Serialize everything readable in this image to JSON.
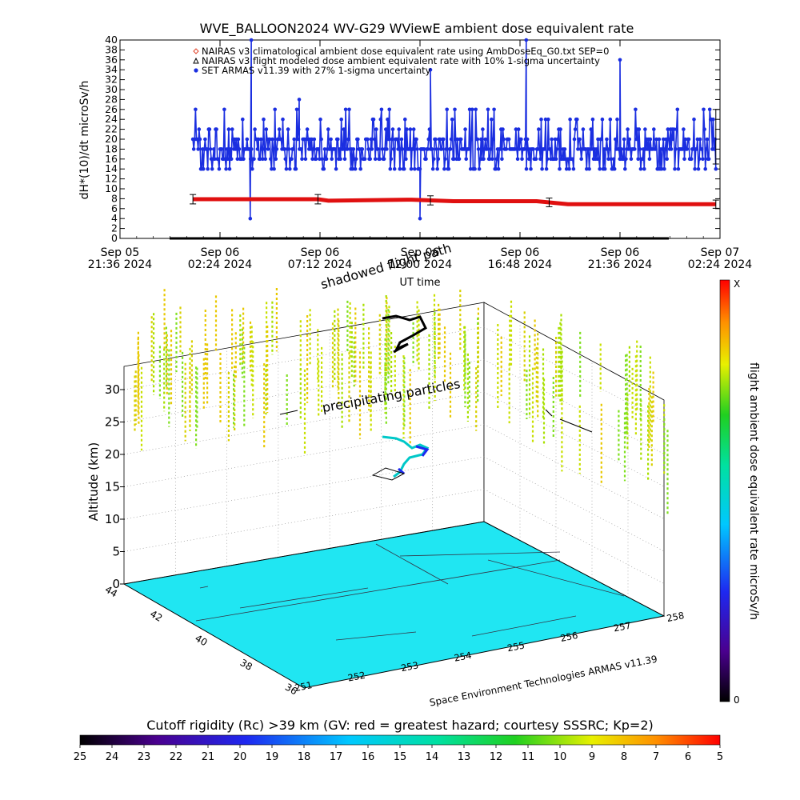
{
  "chart_data": [
    {
      "type": "line",
      "title": "WVE_BALLOON2024 WV-G29 WViewE ambient dose equivalent rate",
      "ylabel": "dH*(10)/dt microSv/h",
      "xlabel": "UT time",
      "ylim": [
        0,
        40
      ],
      "yticks": [
        "0",
        "2",
        "4",
        "6",
        "8",
        "10",
        "12",
        "14",
        "16",
        "18",
        "20",
        "22",
        "24",
        "26",
        "28",
        "30",
        "32",
        "34",
        "36",
        "38",
        "40"
      ],
      "xticks": [
        {
          "line1": "Sep 05",
          "line2": "21:36 2024"
        },
        {
          "line1": "Sep 06",
          "line2": "02:24 2024"
        },
        {
          "line1": "Sep 06",
          "line2": "07:12 2024"
        },
        {
          "line1": "Sep 06",
          "line2": "12:00 2024"
        },
        {
          "line1": "Sep 06",
          "line2": "16:48 2024"
        },
        {
          "line1": "Sep 06",
          "line2": "21:36 2024"
        },
        {
          "line1": "Sep 07",
          "line2": "02:24 2024"
        }
      ],
      "xlim_hours": [
        0,
        28.8
      ],
      "legend_placement": "top",
      "legend": [
        {
          "symbol": "diamond",
          "color": "#e0442a",
          "text": "NAIRAS v3 climatological ambient dose equivalent rate using AmbDoseEq_G0.txt SEP=0"
        },
        {
          "symbol": "triangle",
          "color": "#000000",
          "text": "NAIRAS v3 flight modeled dose ambient equivalent rate with 10% 1-sigma uncertainty"
        },
        {
          "symbol": "dot",
          "color": "#1a2ee0",
          "text": "SET ARMAS v11.39 with 27% 1-sigma uncertainty"
        }
      ],
      "series": [
        {
          "name": "SET ARMAS v11.39 with 27% 1-sigma uncertainty",
          "color": "#1a2ee0",
          "x_start_hours": 3.5,
          "x_end_hours": 28.6,
          "baseline": 18,
          "levels": [
            14,
            16,
            18,
            20,
            22,
            24,
            26,
            28
          ],
          "spikes": [
            {
              "x_hours": 6.3,
              "y": 40
            },
            {
              "x_hours": 6.25,
              "y": 4
            },
            {
              "x_hours": 8.6,
              "y": 28
            },
            {
              "x_hours": 14.4,
              "y": 4
            },
            {
              "x_hours": 14.9,
              "y": 34
            },
            {
              "x_hours": 19.5,
              "y": 40
            },
            {
              "x_hours": 24.0,
              "y": 36
            }
          ]
        },
        {
          "name": "NAIRAS v3 flight modeled dose ambient equivalent rate with 10% 1-sigma uncertainty",
          "color": "#e01010",
          "x": [
            3.5,
            9.5,
            10.0,
            14.0,
            16.0,
            20.0,
            21.5,
            28.6
          ],
          "y": [
            7.9,
            7.9,
            7.6,
            7.8,
            7.5,
            7.5,
            6.9,
            6.9
          ]
        }
      ],
      "error_bars_hours": [
        3.5,
        9.5,
        14.9,
        20.6,
        28.6
      ]
    },
    {
      "type": "scatter",
      "subtitle": "shadowed flight path",
      "annotation": "precipitating particles",
      "zlabel": "Altitude (km)",
      "zticks": [
        "0",
        "5",
        "10",
        "15",
        "20",
        "25",
        "30"
      ],
      "lat_ticks": [
        "44",
        "42",
        "40",
        "38",
        "36"
      ],
      "lon_ticks": [
        "251",
        "252",
        "253",
        "254",
        "255",
        "256",
        "257",
        "258"
      ],
      "credit": "Space Environment Technologies ARMAS v11.39",
      "colorbar": {
        "label": "flight ambient dose equivalent rate microSv/h",
        "top_label": "X",
        "bottom_label": "0"
      }
    },
    {
      "type": "heatmap",
      "label": "Cutoff rigidity (Rc) >39 km (GV: red = greatest hazard; courtesy SSSRC; Kp=2)",
      "ticks": [
        "25",
        "24",
        "23",
        "22",
        "21",
        "20",
        "19",
        "18",
        "17",
        "16",
        "15",
        "14",
        "13",
        "12",
        "11",
        "10",
        "9",
        "8",
        "7",
        "6",
        "5"
      ]
    }
  ]
}
